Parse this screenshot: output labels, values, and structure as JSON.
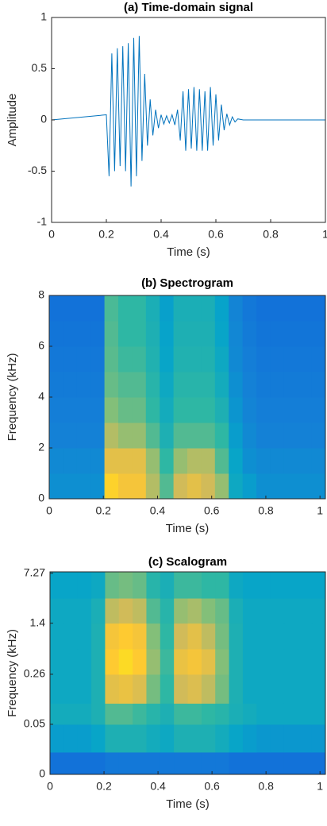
{
  "chart_data": [
    {
      "type": "line",
      "title": "(a) Time-domain signal",
      "xlabel": "Time (s)",
      "ylabel": "Amplitude",
      "color": "#0072bd",
      "xlim": [
        0,
        1
      ],
      "ylim": [
        -1,
        1
      ],
      "xticks": [
        0,
        0.2,
        0.4,
        0.6,
        0.8,
        1
      ],
      "yticks": [
        -1,
        -0.5,
        0,
        0.5,
        1
      ],
      "grid": false,
      "x": [
        0,
        0.2,
        0.21,
        0.22,
        0.23,
        0.24,
        0.25,
        0.26,
        0.27,
        0.28,
        0.29,
        0.3,
        0.31,
        0.32,
        0.33,
        0.34,
        0.35,
        0.36,
        0.37,
        0.38,
        0.39,
        0.4,
        0.41,
        0.42,
        0.43,
        0.44,
        0.45,
        0.46,
        0.47,
        0.48,
        0.49,
        0.5,
        0.51,
        0.52,
        0.53,
        0.54,
        0.55,
        0.56,
        0.57,
        0.58,
        0.59,
        0.6,
        0.61,
        0.62,
        0.63,
        0.64,
        0.65,
        0.66,
        0.67,
        0.68,
        0.7,
        1
      ],
      "values": [
        0,
        0.05,
        -0.55,
        0.65,
        -0.5,
        0.7,
        -0.45,
        0.72,
        -0.5,
        0.75,
        -0.65,
        0.8,
        -0.55,
        0.82,
        -0.4,
        0.45,
        -0.25,
        0.2,
        -0.15,
        0.1,
        -0.08,
        0.05,
        -0.04,
        0.04,
        -0.03,
        0.05,
        -0.05,
        0.1,
        -0.2,
        0.28,
        -0.3,
        0.3,
        -0.28,
        0.32,
        -0.3,
        0.3,
        -0.3,
        0.28,
        -0.3,
        0.32,
        -0.25,
        0.25,
        -0.2,
        0.15,
        -0.1,
        0.06,
        -0.05,
        0.03,
        -0.02,
        0.01,
        0,
        0
      ]
    },
    {
      "type": "heatmap",
      "title": "(b) Spectrogram",
      "xlabel": "Time (s)",
      "ylabel": "Frequency (kHz)",
      "xlim": [
        0,
        1.02
      ],
      "ylim": [
        0,
        8
      ],
      "xticks": [
        0,
        0.2,
        0.4,
        0.6,
        0.8,
        1
      ],
      "yticks": [
        0,
        2,
        4,
        6,
        8
      ],
      "clim": [
        0,
        1
      ],
      "colormap": [
        "#352a87",
        "#0f5cdd",
        "#1481d6",
        "#06a4ca",
        "#2eb7a4",
        "#87bf77",
        "#d1bb59",
        "#fec832",
        "#f9fb0e"
      ],
      "x_edges": [
        0,
        0.051,
        0.102,
        0.153,
        0.204,
        0.255,
        0.306,
        0.357,
        0.408,
        0.459,
        0.51,
        0.561,
        0.612,
        0.663,
        0.714,
        0.765,
        0.816,
        0.867,
        0.918,
        0.969,
        1.02
      ],
      "y_edges": [
        0,
        1,
        2,
        3,
        4,
        5,
        6,
        7,
        8
      ],
      "z": [
        [
          0.3,
          0.3,
          0.3,
          0.3,
          0.9,
          0.85,
          0.85,
          0.7,
          0.55,
          0.75,
          0.8,
          0.75,
          0.65,
          0.4,
          0.35,
          0.3,
          0.3,
          0.3,
          0.3,
          0.3
        ],
        [
          0.28,
          0.28,
          0.28,
          0.28,
          0.8,
          0.8,
          0.8,
          0.65,
          0.5,
          0.65,
          0.7,
          0.7,
          0.55,
          0.38,
          0.3,
          0.28,
          0.28,
          0.28,
          0.28,
          0.28
        ],
        [
          0.25,
          0.25,
          0.25,
          0.25,
          0.7,
          0.65,
          0.65,
          0.55,
          0.45,
          0.55,
          0.55,
          0.55,
          0.5,
          0.35,
          0.28,
          0.25,
          0.25,
          0.25,
          0.25,
          0.25
        ],
        [
          0.24,
          0.24,
          0.24,
          0.24,
          0.62,
          0.58,
          0.58,
          0.5,
          0.42,
          0.5,
          0.5,
          0.5,
          0.45,
          0.32,
          0.26,
          0.24,
          0.24,
          0.24,
          0.24,
          0.24
        ],
        [
          0.23,
          0.23,
          0.23,
          0.23,
          0.58,
          0.55,
          0.55,
          0.48,
          0.4,
          0.48,
          0.48,
          0.48,
          0.42,
          0.3,
          0.25,
          0.23,
          0.23,
          0.23,
          0.23,
          0.23
        ],
        [
          0.22,
          0.22,
          0.22,
          0.22,
          0.56,
          0.52,
          0.52,
          0.46,
          0.38,
          0.46,
          0.46,
          0.46,
          0.4,
          0.28,
          0.24,
          0.22,
          0.22,
          0.22,
          0.22,
          0.22
        ],
        [
          0.21,
          0.21,
          0.21,
          0.21,
          0.55,
          0.5,
          0.5,
          0.45,
          0.37,
          0.45,
          0.45,
          0.45,
          0.38,
          0.27,
          0.23,
          0.21,
          0.21,
          0.21,
          0.21,
          0.21
        ],
        [
          0.2,
          0.2,
          0.2,
          0.2,
          0.54,
          0.5,
          0.5,
          0.44,
          0.36,
          0.44,
          0.44,
          0.44,
          0.37,
          0.26,
          0.22,
          0.2,
          0.2,
          0.2,
          0.2,
          0.2
        ]
      ]
    },
    {
      "type": "heatmap",
      "title": "(c) Scalogram",
      "xlabel": "Time (s)",
      "ylabel": "Frequency (kHz)",
      "yscale": "log",
      "xlim": [
        0,
        1.02
      ],
      "ylim": [
        0.0096,
        7.6
      ],
      "xticks": [
        0,
        0.2,
        0.4,
        0.6,
        0.8,
        1
      ],
      "yticks": [
        {
          "value": 0.0096,
          "label": "0"
        },
        0.05,
        0.26,
        1.4,
        7.27
      ],
      "clim": [
        0,
        1
      ],
      "colormap": [
        "#352a87",
        "#0f5cdd",
        "#1481d6",
        "#06a4ca",
        "#2eb7a4",
        "#87bf77",
        "#d1bb59",
        "#fec832",
        "#f9fb0e"
      ],
      "x_edges": [
        0,
        0.051,
        0.102,
        0.153,
        0.204,
        0.255,
        0.306,
        0.357,
        0.408,
        0.459,
        0.51,
        0.561,
        0.612,
        0.663,
        0.714,
        0.765,
        0.816,
        0.867,
        0.918,
        0.969,
        1.02
      ],
      "y_edges": [
        0.0096,
        0.02,
        0.05,
        0.1,
        0.26,
        0.6,
        1.4,
        3.2,
        7.6
      ],
      "z": [
        [
          0.2,
          0.2,
          0.2,
          0.2,
          0.22,
          0.22,
          0.22,
          0.22,
          0.22,
          0.22,
          0.22,
          0.22,
          0.22,
          0.2,
          0.2,
          0.2,
          0.2,
          0.2,
          0.2,
          0.2
        ],
        [
          0.35,
          0.35,
          0.35,
          0.38,
          0.45,
          0.45,
          0.45,
          0.42,
          0.4,
          0.45,
          0.45,
          0.45,
          0.42,
          0.38,
          0.35,
          0.33,
          0.33,
          0.33,
          0.33,
          0.33
        ],
        [
          0.42,
          0.42,
          0.42,
          0.45,
          0.55,
          0.55,
          0.52,
          0.48,
          0.45,
          0.52,
          0.52,
          0.5,
          0.48,
          0.44,
          0.42,
          0.4,
          0.4,
          0.4,
          0.4,
          0.4
        ],
        [
          0.4,
          0.4,
          0.4,
          0.45,
          0.8,
          0.82,
          0.78,
          0.6,
          0.5,
          0.75,
          0.78,
          0.72,
          0.6,
          0.45,
          0.4,
          0.4,
          0.4,
          0.4,
          0.4,
          0.4
        ],
        [
          0.4,
          0.4,
          0.4,
          0.45,
          0.88,
          0.92,
          0.88,
          0.65,
          0.52,
          0.82,
          0.85,
          0.8,
          0.62,
          0.45,
          0.4,
          0.4,
          0.4,
          0.4,
          0.4,
          0.4
        ],
        [
          0.4,
          0.4,
          0.4,
          0.45,
          0.85,
          0.88,
          0.85,
          0.62,
          0.5,
          0.75,
          0.8,
          0.72,
          0.6,
          0.45,
          0.4,
          0.4,
          0.4,
          0.4,
          0.4,
          0.4
        ],
        [
          0.4,
          0.4,
          0.4,
          0.44,
          0.72,
          0.75,
          0.72,
          0.55,
          0.48,
          0.65,
          0.68,
          0.62,
          0.58,
          0.44,
          0.4,
          0.4,
          0.4,
          0.4,
          0.4,
          0.4
        ],
        [
          0.38,
          0.38,
          0.38,
          0.4,
          0.58,
          0.6,
          0.58,
          0.48,
          0.44,
          0.52,
          0.52,
          0.5,
          0.5,
          0.4,
          0.38,
          0.38,
          0.38,
          0.38,
          0.38,
          0.38
        ]
      ]
    }
  ]
}
